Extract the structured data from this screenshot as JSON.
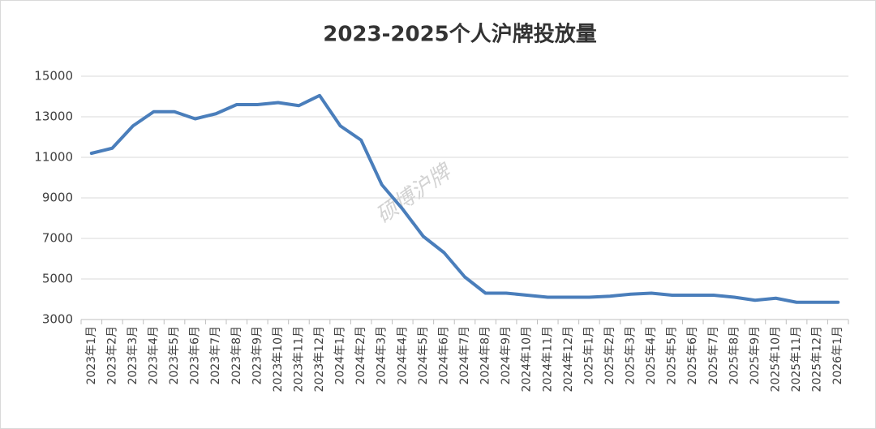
{
  "chart_data": {
    "type": "line",
    "title": "2023-2025个人沪牌投放量",
    "watermark": "硕博沪牌",
    "categories": [
      "2023年1月",
      "2023年2月",
      "2023年3月",
      "2023年4月",
      "2023年5月",
      "2023年6月",
      "2023年7月",
      "2023年8月",
      "2023年9月",
      "2023年10月",
      "2023年11月",
      "2023年12月",
      "2024年1月",
      "2024年2月",
      "2024年3月",
      "2024年4月",
      "2024年5月",
      "2024年6月",
      "2024年7月",
      "2024年8月",
      "2024年9月",
      "2024年10月",
      "2024年11月",
      "2024年12月",
      "2025年1月",
      "2025年2月",
      "2025年3月",
      "2025年4月",
      "2025年5月",
      "2025年6月",
      "2025年7月",
      "2025年8月",
      "2025年9月",
      "2025年10月",
      "2025年11月",
      "2025年12月",
      "2026年1月"
    ],
    "values": [
      11200,
      11450,
      12550,
      13250,
      13250,
      12900,
      13150,
      13600,
      13600,
      13700,
      13550,
      14050,
      12550,
      11850,
      9650,
      8450,
      7100,
      6300,
      5100,
      4300,
      4300,
      4200,
      4100,
      4100,
      4100,
      4150,
      4250,
      4300,
      4200,
      4200,
      4200,
      4100,
      3950,
      4050,
      3850,
      3850,
      3850
    ],
    "color": "#4a7ebb",
    "ylim": [
      3000,
      15000
    ],
    "yticks": [
      3000,
      5000,
      7000,
      9000,
      11000,
      13000,
      15000
    ],
    "grid": true
  }
}
